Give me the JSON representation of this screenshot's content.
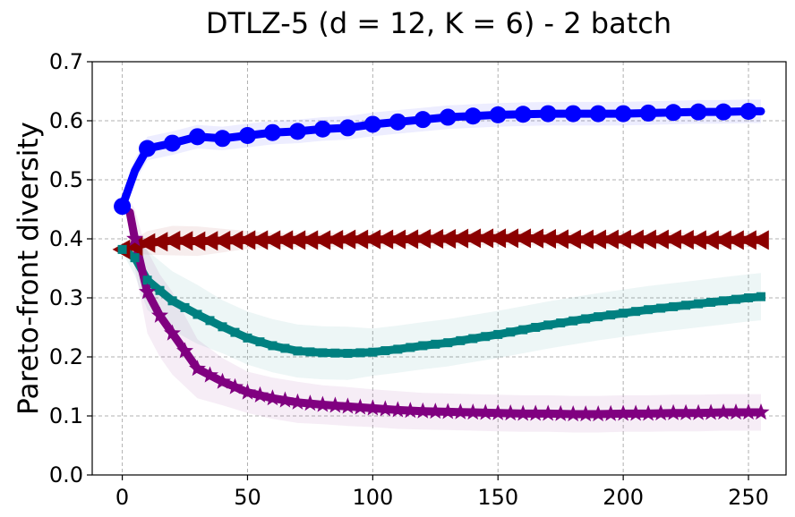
{
  "chart_data": {
    "type": "line",
    "title": "DTLZ-5 (d = 12, K = 6) - 2 batch",
    "xlabel": "",
    "ylabel": "Pareto-front diversity",
    "xlim": [
      -12,
      265
    ],
    "ylim": [
      0.0,
      0.7
    ],
    "xticks": [
      0,
      50,
      100,
      150,
      200,
      250
    ],
    "xtick_labels": [
      "0",
      "50",
      "100",
      "150",
      "200",
      "250"
    ],
    "yticks": [
      0.0,
      0.1,
      0.2,
      0.3,
      0.4,
      0.5,
      0.6,
      0.7
    ],
    "ytick_labels": [
      "0.0",
      "0.1",
      "0.2",
      "0.3",
      "0.4",
      "0.5",
      "0.6",
      "0.7"
    ],
    "grid": true,
    "series": [
      {
        "name": "blue-circle",
        "color": "#0000ff",
        "marker": "circle",
        "x": [
          0,
          5,
          10,
          20,
          30,
          40,
          50,
          60,
          70,
          80,
          90,
          100,
          110,
          120,
          130,
          140,
          150,
          160,
          170,
          180,
          190,
          200,
          210,
          220,
          230,
          240,
          250,
          255
        ],
        "y": [
          0.455,
          0.515,
          0.553,
          0.562,
          0.573,
          0.57,
          0.575,
          0.58,
          0.582,
          0.586,
          0.588,
          0.594,
          0.598,
          0.602,
          0.606,
          0.608,
          0.61,
          0.611,
          0.612,
          0.612,
          0.612,
          0.612,
          0.613,
          0.614,
          0.615,
          0.615,
          0.616,
          0.616
        ],
        "band": [
          0.02,
          0.02,
          0.02,
          0.02,
          0.02,
          0.02,
          0.02,
          0.02,
          0.02,
          0.02,
          0.02,
          0.02,
          0.02,
          0.02,
          0.02,
          0.02,
          0.02,
          0.02,
          0.02,
          0.02,
          0.02,
          0.02,
          0.02,
          0.02,
          0.02,
          0.02,
          0.02,
          0.02
        ]
      },
      {
        "name": "darkred-triangle",
        "color": "#8b0000",
        "marker": "triangle-left",
        "x": [
          0,
          10,
          20,
          30,
          40,
          50,
          60,
          70,
          80,
          90,
          100,
          110,
          120,
          130,
          140,
          150,
          160,
          170,
          180,
          190,
          200,
          210,
          220,
          230,
          240,
          250,
          255
        ],
        "y": [
          0.382,
          0.393,
          0.397,
          0.396,
          0.397,
          0.398,
          0.398,
          0.398,
          0.398,
          0.399,
          0.399,
          0.399,
          0.4,
          0.4,
          0.401,
          0.401,
          0.401,
          0.4,
          0.399,
          0.399,
          0.399,
          0.399,
          0.399,
          0.398,
          0.398,
          0.398,
          0.398
        ],
        "band": [
          0.005,
          0.02,
          0.025,
          0.025,
          0.02,
          0.015,
          0.012,
          0.012,
          0.012,
          0.012,
          0.012,
          0.012,
          0.012,
          0.012,
          0.012,
          0.012,
          0.012,
          0.012,
          0.012,
          0.012,
          0.012,
          0.012,
          0.012,
          0.012,
          0.012,
          0.012,
          0.012
        ]
      },
      {
        "name": "teal-square",
        "color": "#008080",
        "marker": "square",
        "x": [
          0,
          5,
          10,
          20,
          30,
          40,
          50,
          60,
          70,
          80,
          90,
          100,
          110,
          120,
          130,
          140,
          150,
          160,
          170,
          180,
          190,
          200,
          210,
          220,
          230,
          240,
          250,
          255
        ],
        "y": [
          0.382,
          0.368,
          0.33,
          0.295,
          0.272,
          0.251,
          0.232,
          0.219,
          0.21,
          0.207,
          0.206,
          0.208,
          0.213,
          0.219,
          0.224,
          0.231,
          0.238,
          0.246,
          0.254,
          0.261,
          0.268,
          0.274,
          0.28,
          0.285,
          0.29,
          0.295,
          0.3,
          0.302
        ],
        "band": [
          0.005,
          0.03,
          0.05,
          0.05,
          0.05,
          0.045,
          0.045,
          0.045,
          0.045,
          0.045,
          0.045,
          0.04,
          0.04,
          0.04,
          0.04,
          0.04,
          0.04,
          0.04,
          0.04,
          0.04,
          0.04,
          0.04,
          0.04,
          0.04,
          0.04,
          0.04,
          0.04,
          0.04
        ]
      },
      {
        "name": "purple-star",
        "color": "#800080",
        "marker": "star",
        "x": [
          3,
          5,
          8,
          10,
          15,
          20,
          25,
          30,
          40,
          50,
          60,
          70,
          80,
          90,
          100,
          110,
          120,
          130,
          140,
          150,
          160,
          170,
          180,
          190,
          200,
          210,
          220,
          230,
          240,
          250,
          255
        ],
        "y": [
          0.445,
          0.4,
          0.345,
          0.31,
          0.27,
          0.24,
          0.21,
          0.18,
          0.158,
          0.14,
          0.13,
          0.123,
          0.119,
          0.116,
          0.113,
          0.11,
          0.108,
          0.107,
          0.106,
          0.105,
          0.104,
          0.104,
          0.103,
          0.103,
          0.104,
          0.104,
          0.105,
          0.105,
          0.106,
          0.106,
          0.106
        ],
        "band": [
          0.02,
          0.05,
          0.06,
          0.07,
          0.07,
          0.07,
          0.06,
          0.05,
          0.04,
          0.035,
          0.035,
          0.035,
          0.033,
          0.033,
          0.032,
          0.032,
          0.031,
          0.031,
          0.031,
          0.031,
          0.031,
          0.031,
          0.031,
          0.031,
          0.031,
          0.031,
          0.031,
          0.031,
          0.031,
          0.031,
          0.031
        ]
      }
    ]
  }
}
